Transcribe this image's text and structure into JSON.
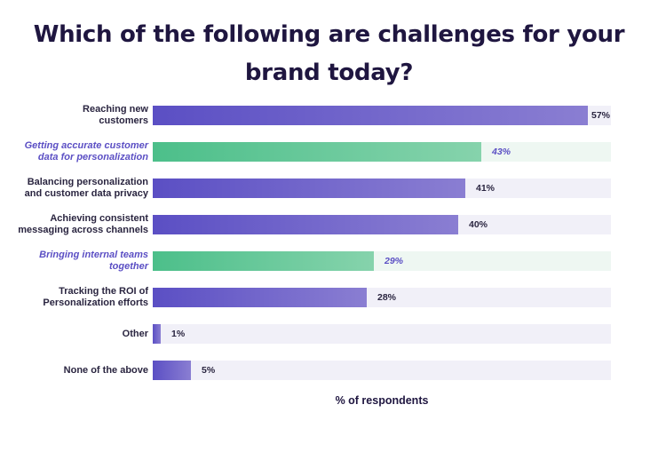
{
  "chart_data": {
    "type": "bar",
    "orientation": "horizontal",
    "title_lines": [
      "Which of the following are challenges for your",
      "brand today?"
    ],
    "xlabel": "% of respondents",
    "xlim": [
      0,
      60
    ],
    "categories": [
      [
        "Reaching new",
        "customers"
      ],
      [
        "Getting accurate customer",
        "data for personalization"
      ],
      [
        "Balancing personalization",
        "and customer data privacy"
      ],
      [
        "Achieving consistent",
        "messaging across channels"
      ],
      [
        "Bringing internal teams",
        "together"
      ],
      [
        "Tracking the ROI of",
        "Personalization efforts"
      ],
      [
        "Other"
      ],
      [
        "None of the above"
      ]
    ],
    "values": [
      57,
      43,
      41,
      40,
      29,
      28,
      1,
      5
    ],
    "value_labels": [
      "57%",
      "43%",
      "41%",
      "40%",
      "29%",
      "28%",
      "1%",
      "5%"
    ],
    "highlighted": [
      false,
      true,
      false,
      false,
      true,
      false,
      false,
      false
    ],
    "colors": {
      "bar": "#6a5ec9",
      "highlight_bar": "#5cc596",
      "highlight_text": "#5b4fc4"
    }
  }
}
